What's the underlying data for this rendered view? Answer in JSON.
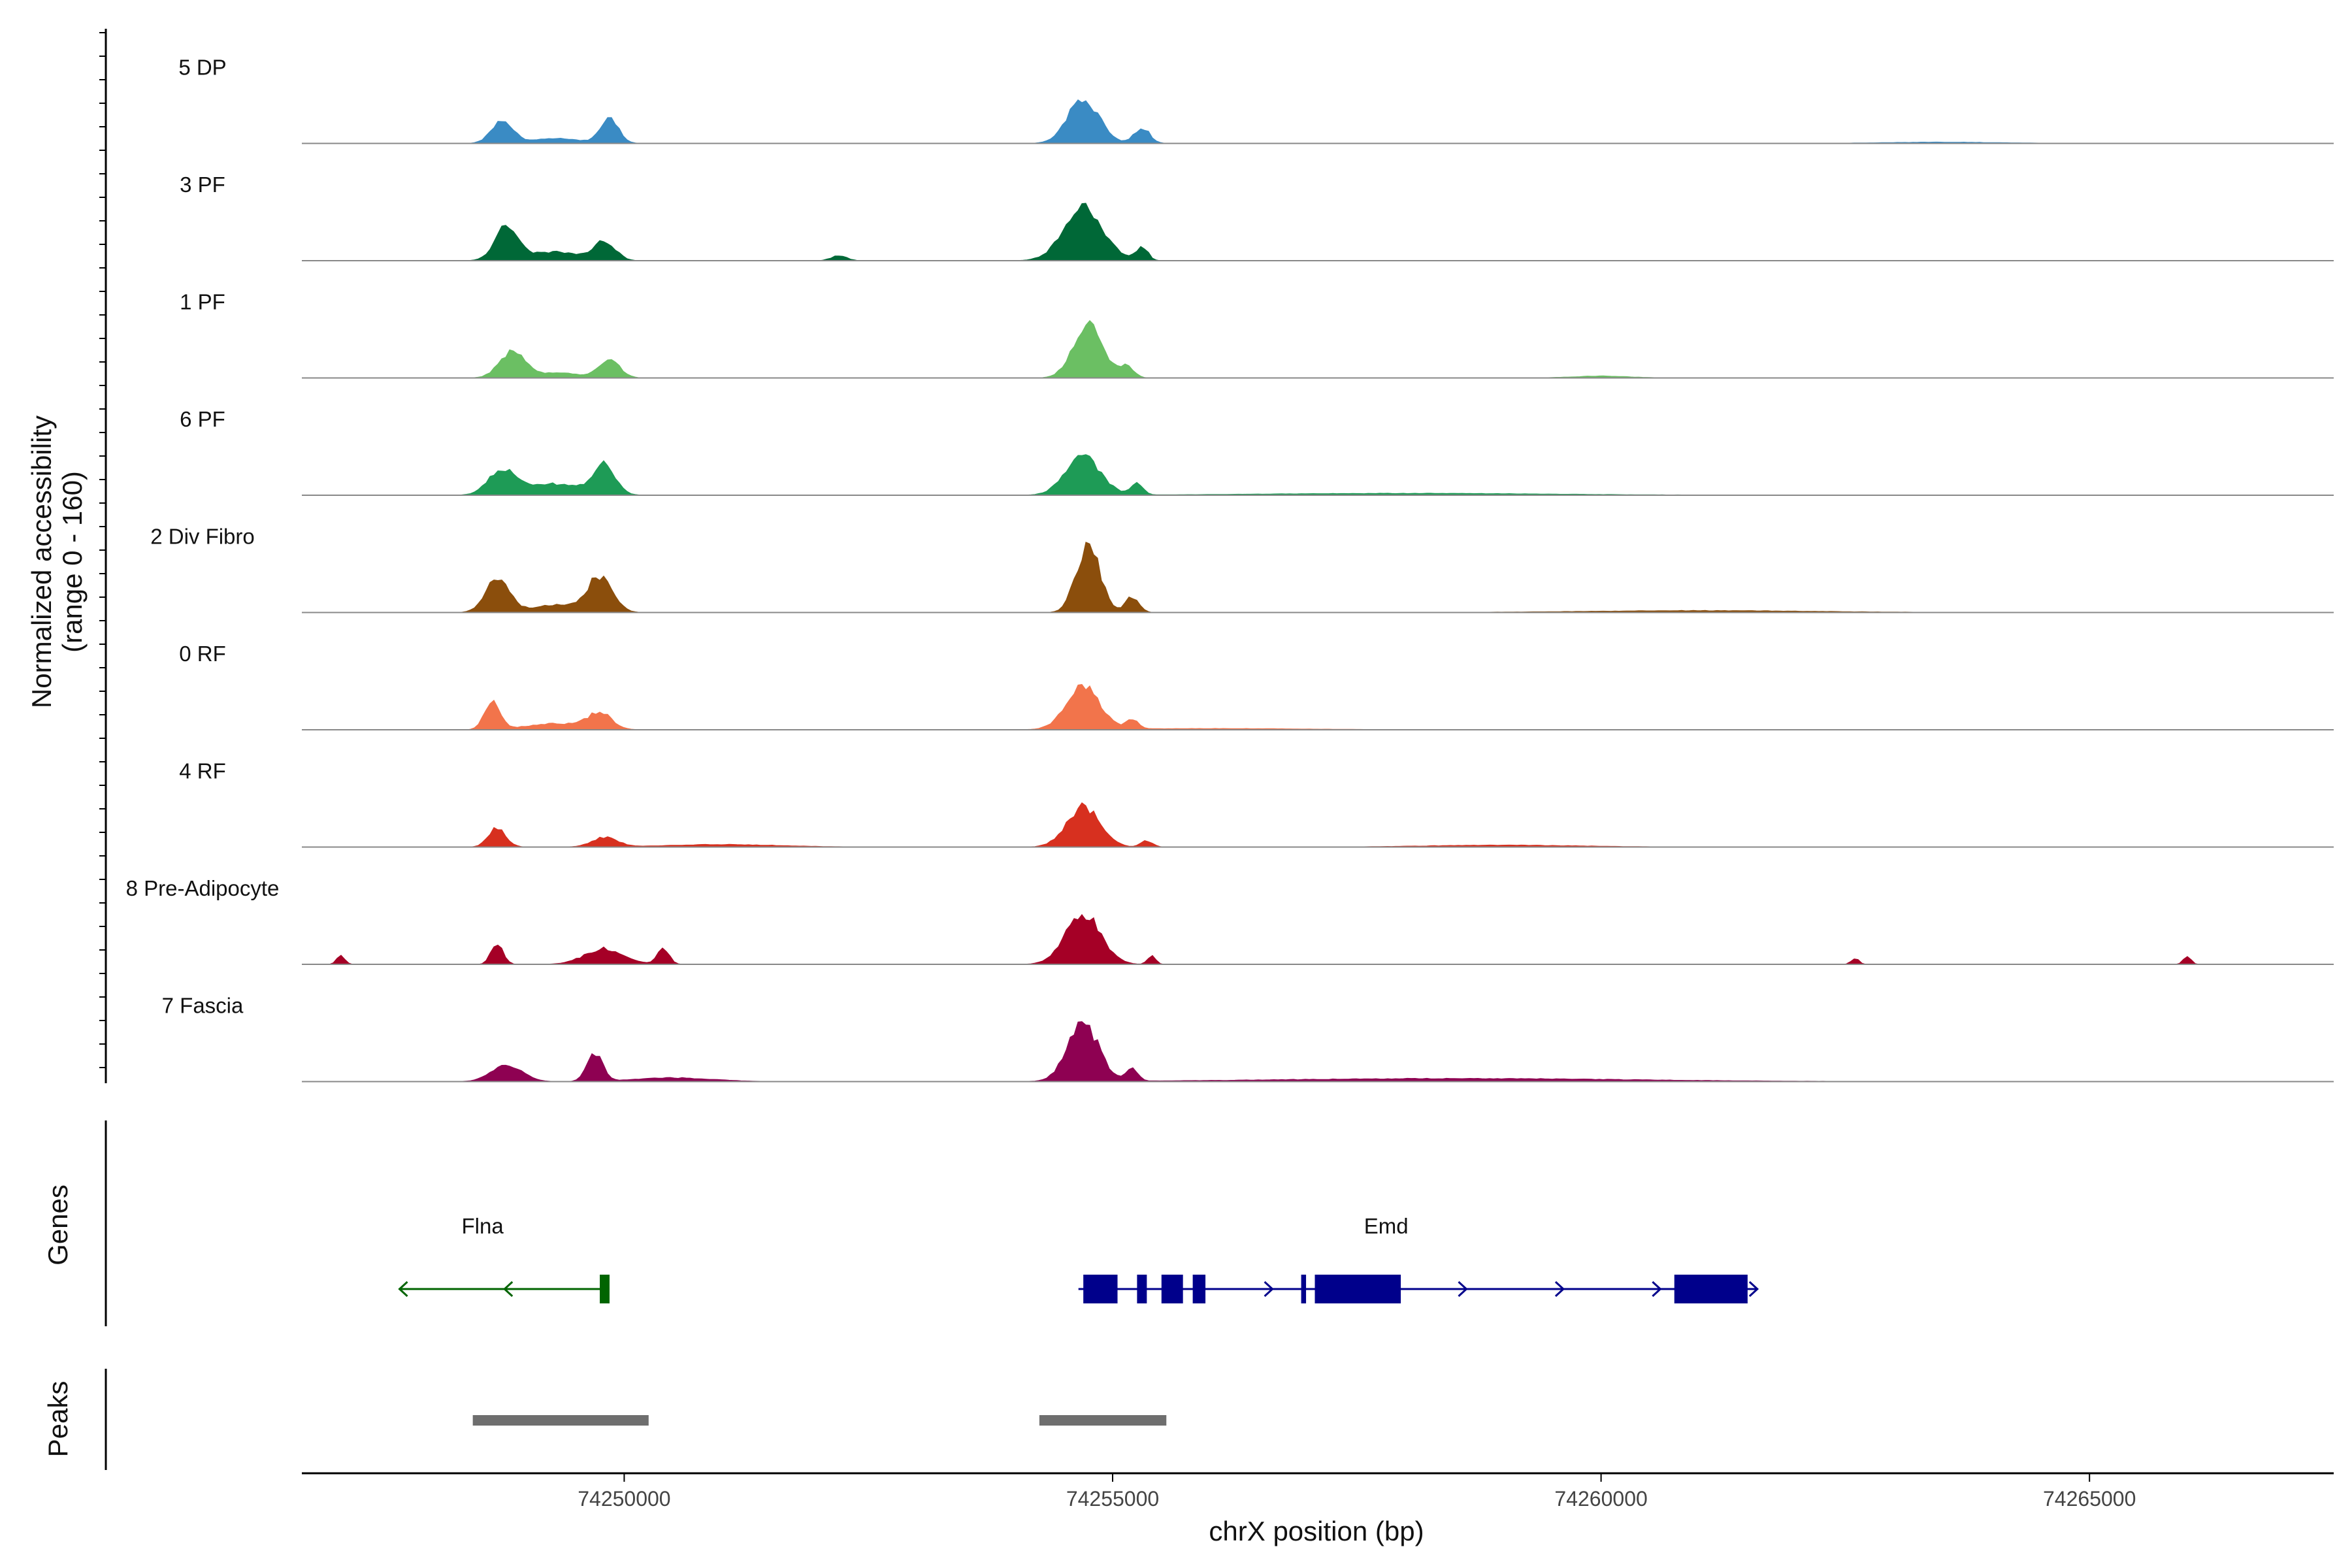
{
  "chart_data": {
    "type": "area",
    "title": "",
    "ylabel_line1": "Normalized accessibility",
    "ylabel_line2": "(range 0 - 160)",
    "ylim": [
      0,
      160
    ],
    "xlabel": "chrX position (bp)",
    "xlim": [
      74246700,
      74267500
    ],
    "xticks": [
      74250000,
      74255000,
      74260000,
      74265000
    ],
    "xtick_labels": [
      "74250000",
      "74255000",
      "74260000",
      "74265000"
    ],
    "series": [
      {
        "name": "5 DP",
        "color": "#3A8BC4",
        "peaks": [
          [
            74248750,
            110,
            35
          ],
          [
            74249850,
            95,
            38
          ],
          [
            74254700,
            160,
            70
          ],
          [
            74255300,
            80,
            25
          ],
          [
            74249300,
            250,
            8
          ],
          [
            74263500,
            600,
            2
          ]
        ]
      },
      {
        "name": "3 PF",
        "color": "#006837",
        "peaks": [
          [
            74248800,
            120,
            55
          ],
          [
            74249800,
            110,
            30
          ],
          [
            74254700,
            200,
            84
          ],
          [
            74255300,
            60,
            22
          ],
          [
            74252200,
            80,
            8
          ],
          [
            74249300,
            250,
            14
          ]
        ]
      },
      {
        "name": "1 PF",
        "color": "#6BBF63",
        "peaks": [
          [
            74248850,
            130,
            40
          ],
          [
            74249850,
            105,
            30
          ],
          [
            74254750,
            150,
            88
          ],
          [
            74255150,
            70,
            18
          ],
          [
            74249300,
            250,
            8
          ],
          [
            74260000,
            300,
            3
          ]
        ]
      },
      {
        "name": "6 PF",
        "color": "#1E9B56",
        "peaks": [
          [
            74248750,
            140,
            40
          ],
          [
            74249800,
            110,
            45
          ],
          [
            74254700,
            180,
            60
          ],
          [
            74255250,
            60,
            20
          ],
          [
            74249300,
            300,
            18
          ],
          [
            74258000,
            1500,
            3
          ]
        ]
      },
      {
        "name": "2 Div Fibro",
        "color": "#8B4E0C",
        "peaks": [
          [
            74248700,
            120,
            55
          ],
          [
            74249750,
            130,
            55
          ],
          [
            74254750,
            120,
            110
          ],
          [
            74255200,
            70,
            25
          ],
          [
            74249300,
            250,
            12
          ],
          [
            74261000,
            1200,
            3
          ]
        ]
      },
      {
        "name": "0 RF",
        "color": "#F2744B",
        "peaks": [
          [
            74248650,
            80,
            45
          ],
          [
            74249750,
            120,
            25
          ],
          [
            74254700,
            170,
            70
          ],
          [
            74255200,
            60,
            15
          ],
          [
            74249300,
            300,
            10
          ],
          [
            74256000,
            1000,
            2
          ]
        ]
      },
      {
        "name": "4 RF",
        "color": "#D7301F",
        "peaks": [
          [
            74248700,
            90,
            30
          ],
          [
            74249800,
            130,
            15
          ],
          [
            74254700,
            170,
            65
          ],
          [
            74255350,
            60,
            10
          ],
          [
            74259000,
            800,
            3
          ],
          [
            74251000,
            600,
            4
          ]
        ]
      },
      {
        "name": "8 Pre-Adipocyte",
        "color": "#A50026",
        "peaks": [
          [
            74248700,
            60,
            35
          ],
          [
            74249800,
            200,
            25
          ],
          [
            74254700,
            180,
            80
          ],
          [
            74255400,
            40,
            15
          ],
          [
            74250400,
            60,
            25
          ],
          [
            74247100,
            40,
            15
          ],
          [
            74266000,
            40,
            12
          ],
          [
            74262600,
            40,
            10
          ]
        ]
      },
      {
        "name": "7 Fascia",
        "color": "#8E0152",
        "peaks": [
          [
            74248800,
            160,
            25
          ],
          [
            74249700,
            80,
            45
          ],
          [
            74254700,
            160,
            90
          ],
          [
            74255200,
            60,
            20
          ],
          [
            74250500,
            400,
            6
          ],
          [
            74258500,
            1800,
            5
          ]
        ]
      }
    ],
    "genes_title": "Genes",
    "genes": [
      {
        "name": "Flna",
        "color": "#006400",
        "strand": "-",
        "start": 74247700,
        "end": 74249850,
        "label_pos": 74248550,
        "exons": [
          [
            74249750,
            74249850
          ]
        ]
      },
      {
        "name": "Emd",
        "color": "#00008B",
        "strand": "+",
        "start": 74254650,
        "end": 74261600,
        "label_pos": 74257800,
        "exons": [
          [
            74254700,
            74255050
          ],
          [
            74255250,
            74255350
          ],
          [
            74255500,
            74255720
          ],
          [
            74255820,
            74255950
          ],
          [
            74256930,
            74256980
          ],
          [
            74257070,
            74257950
          ],
          [
            74260750,
            74261500
          ]
        ]
      }
    ],
    "peaks_title": "Peaks",
    "peak_regions": [
      [
        74248450,
        74250250
      ],
      [
        74254250,
        74255550
      ]
    ]
  }
}
